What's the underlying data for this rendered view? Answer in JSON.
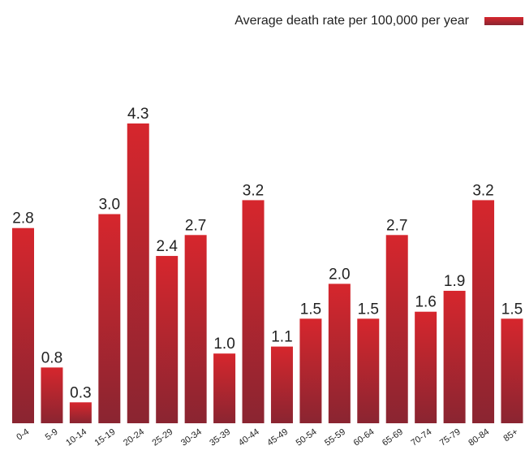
{
  "chart_data": {
    "type": "bar",
    "series": [
      {
        "name": "Average death rate per 100,000 per year",
        "color": "#d6262d",
        "values": [
          2.8,
          0.8,
          0.3,
          3.0,
          4.3,
          2.4,
          2.7,
          1.0,
          3.2,
          1.1,
          1.5,
          2.0,
          1.5,
          2.7,
          1.6,
          1.9,
          3.2,
          1.5
        ],
        "value_labels": [
          "2.8",
          "0.8",
          "0.3",
          "3.0",
          "4.3",
          "2.4",
          "2.7",
          "1.0",
          "3.2",
          "1.1",
          "1.5",
          "2.0",
          "1.5",
          "2.7",
          "1.6",
          "1.9",
          "3.2",
          "1.5"
        ]
      }
    ],
    "categories": [
      "0-4",
      "5-9",
      "10-14",
      "15-19",
      "20-24",
      "25-29",
      "30-34",
      "35-39",
      "40-44",
      "45-49",
      "50-54",
      "55-59",
      "60-64",
      "65-69",
      "70-74",
      "75-79",
      "80-84",
      "85+"
    ],
    "legend": "top-right"
  }
}
